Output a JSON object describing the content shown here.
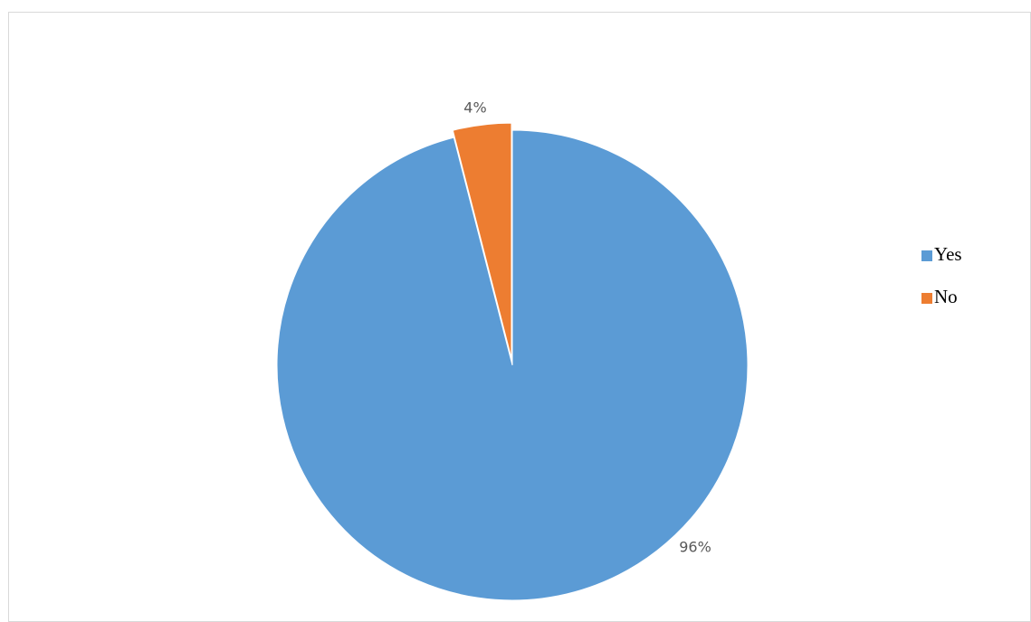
{
  "chart_data": {
    "type": "pie",
    "categories": [
      "Yes",
      "No"
    ],
    "values": [
      96,
      4
    ],
    "value_labels": [
      "96%",
      "4%"
    ],
    "colors": [
      "#5b9bd5",
      "#ed7d31"
    ],
    "legend": "right"
  }
}
